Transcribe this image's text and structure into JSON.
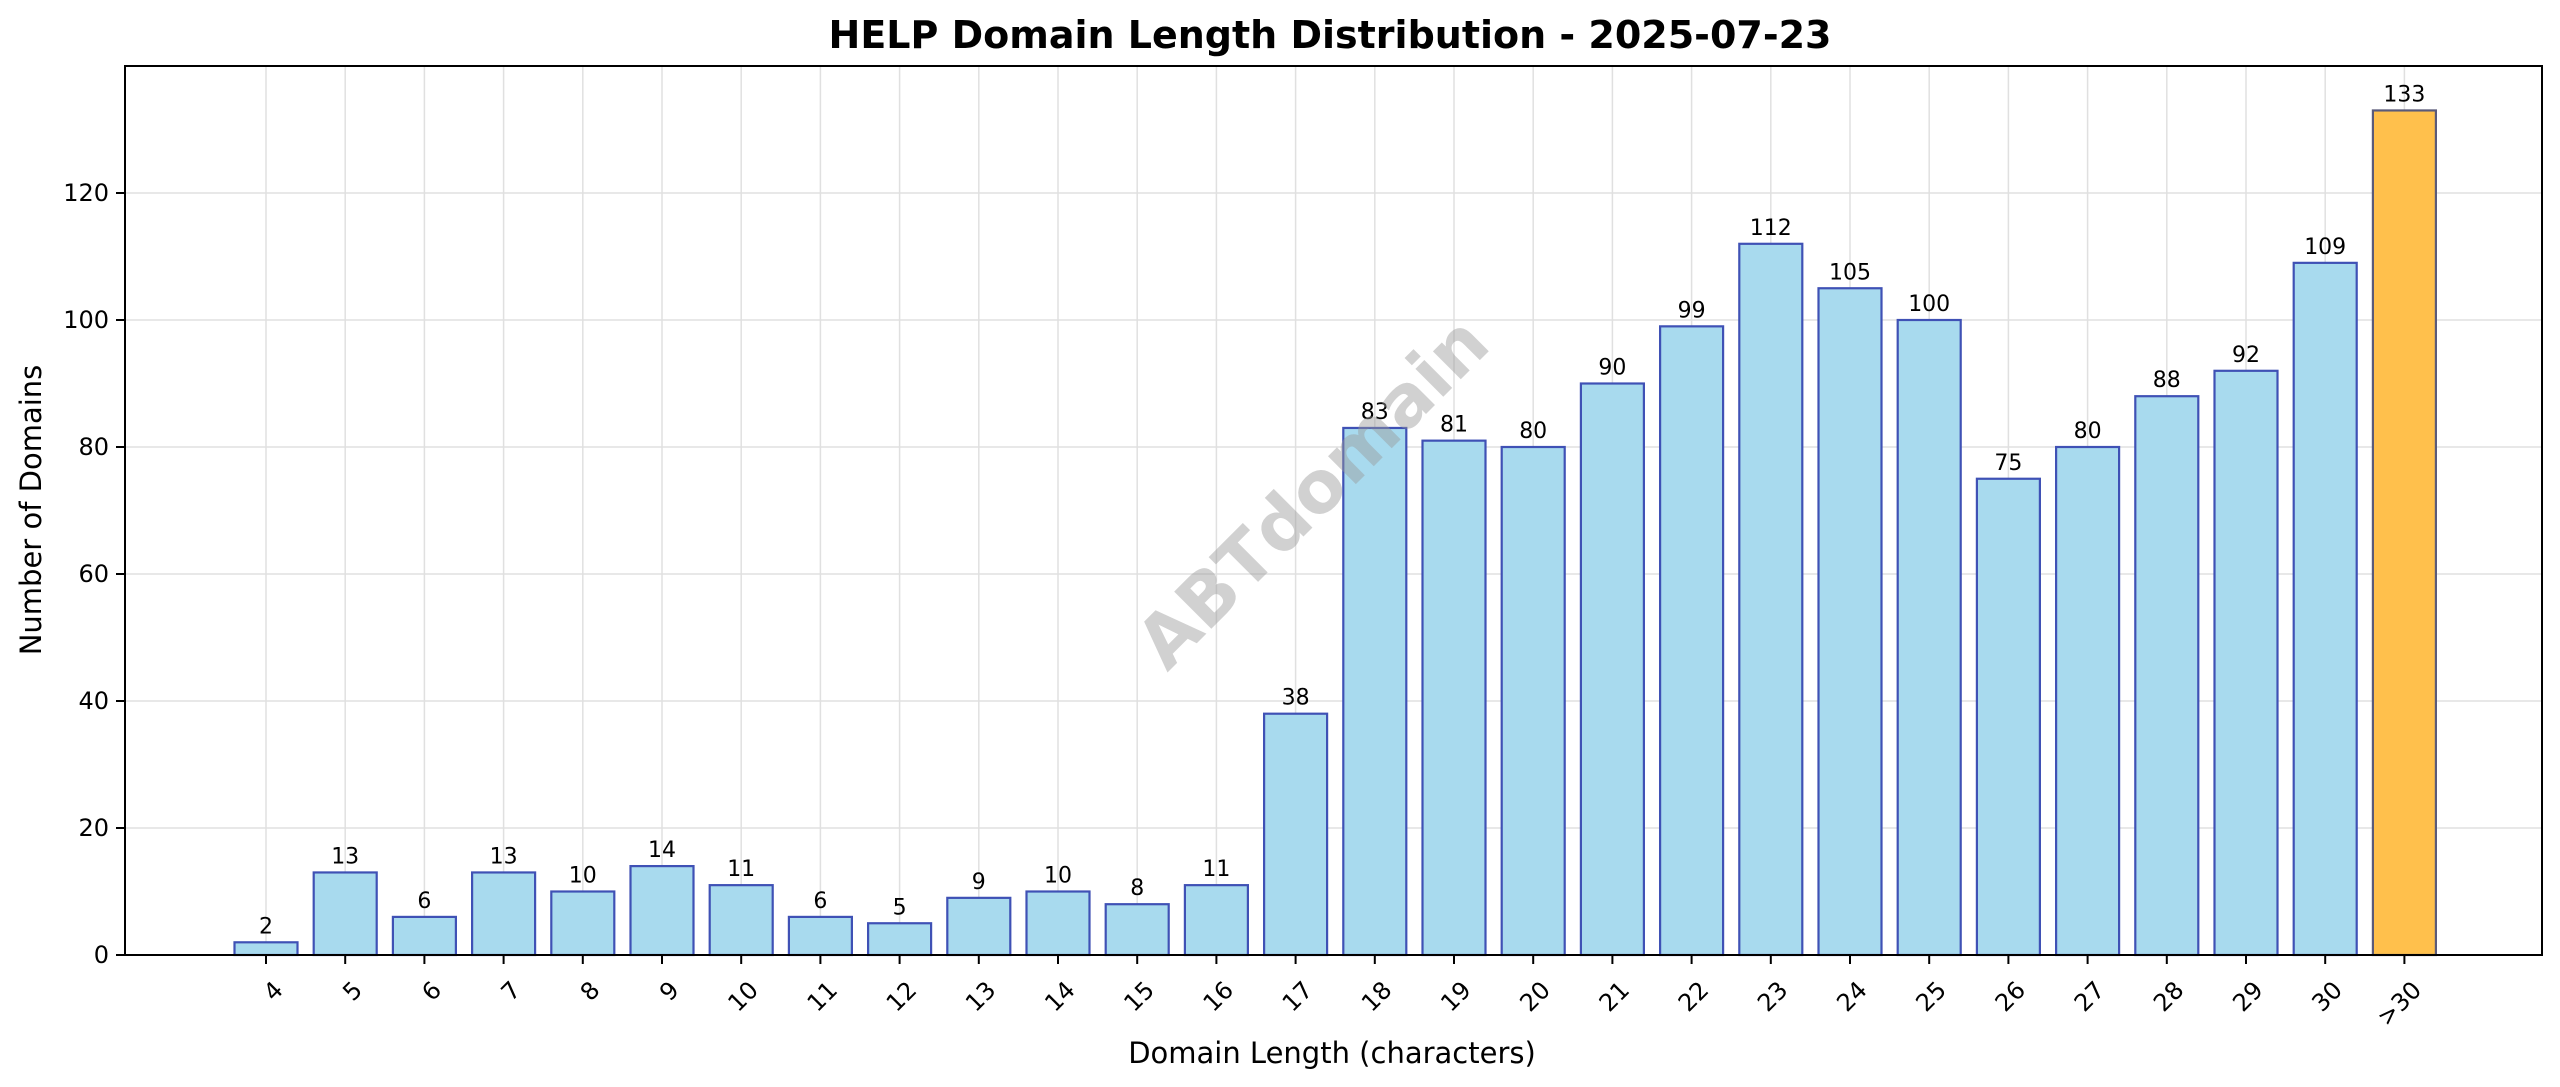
{
  "chart_data": {
    "type": "bar",
    "title": "HELP Domain Length Distribution - 2025-07-23",
    "xlabel": "Domain Length (characters)",
    "ylabel": "Number of Domains",
    "categories": [
      "4",
      "5",
      "6",
      "7",
      "8",
      "9",
      "10",
      "11",
      "12",
      "13",
      "14",
      "15",
      "16",
      "17",
      "18",
      "19",
      "20",
      "21",
      "22",
      "23",
      "24",
      "25",
      "26",
      "27",
      "28",
      "29",
      "30",
      ">30"
    ],
    "values": [
      2,
      13,
      6,
      13,
      10,
      14,
      11,
      6,
      5,
      9,
      10,
      8,
      11,
      38,
      83,
      81,
      80,
      90,
      99,
      112,
      105,
      100,
      75,
      80,
      88,
      92,
      109,
      133
    ],
    "ylim": [
      0,
      140
    ],
    "yticks": [
      0,
      20,
      40,
      60,
      80,
      100,
      120
    ],
    "grid": true,
    "colors": {
      "bar_fill": "#a8daee",
      "bar_edge": "#3f51b5",
      "highlight_fill": "#ffc04c",
      "highlight_edge": "#5a5a7a",
      "highlight_category": ">30",
      "grid": "#e0e0e0"
    },
    "watermark": "ABTdomain"
  }
}
